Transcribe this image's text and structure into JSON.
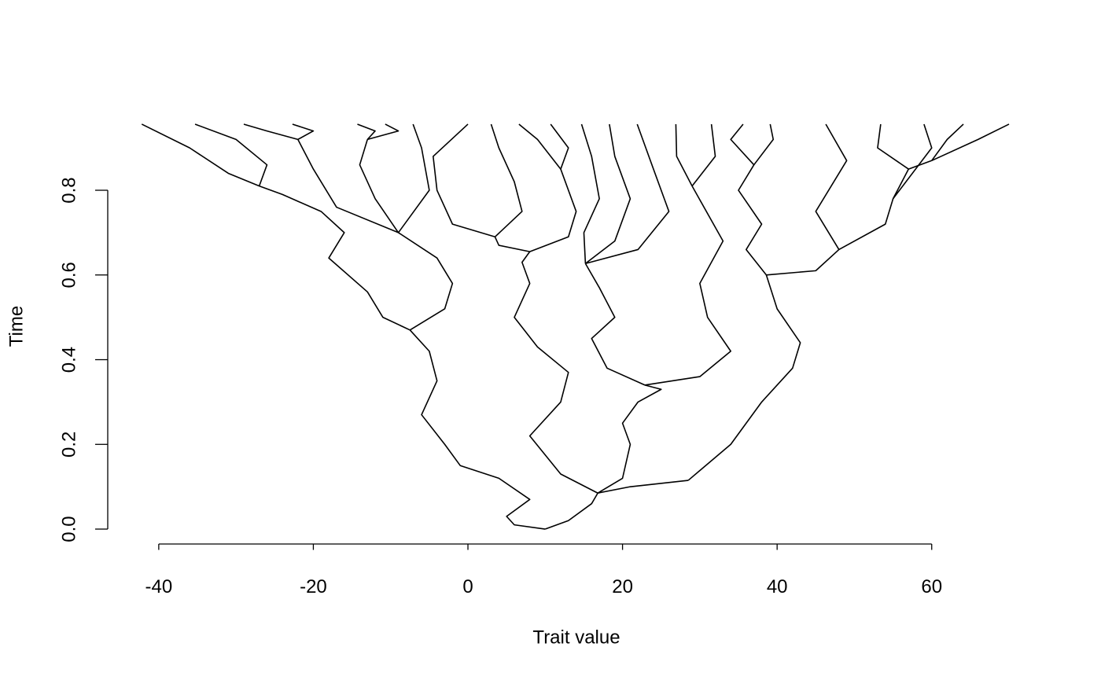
{
  "chart_data": {
    "type": "line",
    "x_label": "Trait value",
    "y_label": "Time",
    "color": "#000000",
    "xlim": [
      -46.6,
      76
    ],
    "ylim": [
      -0.038,
      0.994
    ],
    "xticks": [
      -40,
      -20,
      0,
      20,
      40,
      60
    ],
    "yticks": [
      {
        "value": 0,
        "label": "0.0"
      },
      0.2,
      0.4,
      0.6,
      0.8
    ],
    "series": [
      {
        "x": [
          10,
          6,
          5,
          8,
          4,
          -1,
          -3,
          -6,
          -4,
          -5,
          -7.5
        ],
        "values": [
          0,
          0.01,
          0.03,
          0.07,
          0.12,
          0.15,
          0.2,
          0.27,
          0.35,
          0.42,
          0.47
        ]
      },
      {
        "x": [
          10,
          13,
          16,
          16.8
        ],
        "values": [
          0,
          0.02,
          0.06,
          0.085
        ]
      },
      {
        "x": [
          -7.5,
          -11,
          -13,
          -18,
          -16,
          -19,
          -24,
          -27
        ],
        "values": [
          0.47,
          0.5,
          0.56,
          0.64,
          0.7,
          0.75,
          0.79,
          0.81
        ]
      },
      {
        "x": [
          -27,
          -31,
          -36,
          -42.2
        ],
        "values": [
          0.81,
          0.84,
          0.9,
          0.956
        ]
      },
      {
        "x": [
          -27,
          -26,
          -30,
          -35.3
        ],
        "values": [
          0.81,
          0.86,
          0.92,
          0.956
        ]
      },
      {
        "x": [
          -7.5,
          -3,
          -2,
          -4,
          -9
        ],
        "values": [
          0.47,
          0.52,
          0.58,
          0.64,
          0.7
        ]
      },
      {
        "x": [
          -9,
          -17,
          -20,
          -22
        ],
        "values": [
          0.7,
          0.76,
          0.85,
          0.92
        ]
      },
      {
        "x": [
          -22,
          -26,
          -29
        ],
        "values": [
          0.92,
          0.94,
          0.956
        ]
      },
      {
        "x": [
          -22,
          -20,
          -22.7
        ],
        "values": [
          0.92,
          0.94,
          0.956
        ]
      },
      {
        "x": [
          -9,
          -12,
          -14,
          -13
        ],
        "values": [
          0.7,
          0.78,
          0.86,
          0.92
        ]
      },
      {
        "x": [
          -13,
          -12,
          -14.3
        ],
        "values": [
          0.92,
          0.94,
          0.956
        ]
      },
      {
        "x": [
          -13,
          -9,
          -10.7
        ],
        "values": [
          0.92,
          0.94,
          0.956
        ]
      },
      {
        "x": [
          -9,
          -5,
          -6,
          -7.1
        ],
        "values": [
          0.7,
          0.8,
          0.9,
          0.956
        ]
      },
      {
        "x": [
          16.8,
          12,
          8,
          12,
          13,
          9,
          6,
          8,
          7,
          8
        ],
        "values": [
          0.085,
          0.13,
          0.22,
          0.3,
          0.37,
          0.43,
          0.5,
          0.58,
          0.63,
          0.655
        ]
      },
      {
        "x": [
          8,
          4,
          3.5
        ],
        "values": [
          0.655,
          0.67,
          0.69
        ]
      },
      {
        "x": [
          3.5,
          -2,
          -4,
          -4.5,
          0
        ],
        "values": [
          0.69,
          0.72,
          0.8,
          0.88,
          0.956
        ]
      },
      {
        "x": [
          3.5,
          7,
          6,
          4,
          3
        ],
        "values": [
          0.69,
          0.75,
          0.82,
          0.9,
          0.956
        ]
      },
      {
        "x": [
          8,
          13,
          14,
          12,
          9,
          6.6
        ],
        "values": [
          0.655,
          0.69,
          0.75,
          0.85,
          0.92,
          0.956
        ]
      },
      {
        "x": [
          12,
          13,
          10.7
        ],
        "values": [
          0.85,
          0.9,
          0.956
        ]
      },
      {
        "x": [
          16.8,
          20,
          21,
          20,
          22,
          25,
          22.9
        ],
        "values": [
          0.085,
          0.12,
          0.2,
          0.25,
          0.3,
          0.33,
          0.34
        ]
      },
      {
        "x": [
          22.9,
          18,
          16,
          19,
          17,
          15.2
        ],
        "values": [
          0.34,
          0.38,
          0.45,
          0.5,
          0.57,
          0.627
        ]
      },
      {
        "x": [
          15.2,
          15,
          17,
          16,
          14.7
        ],
        "values": [
          0.627,
          0.7,
          0.78,
          0.88,
          0.956
        ]
      },
      {
        "x": [
          15.2,
          19,
          21,
          19,
          18.3
        ],
        "values": [
          0.627,
          0.68,
          0.78,
          0.88,
          0.956
        ]
      },
      {
        "x": [
          15.2,
          22,
          26,
          24,
          21.9
        ],
        "values": [
          0.627,
          0.66,
          0.75,
          0.85,
          0.956
        ]
      },
      {
        "x": [
          22.9,
          30,
          34,
          31,
          30,
          33,
          29
        ],
        "values": [
          0.34,
          0.36,
          0.42,
          0.5,
          0.58,
          0.68,
          0.81
        ]
      },
      {
        "x": [
          29,
          27,
          26.9
        ],
        "values": [
          0.81,
          0.88,
          0.956
        ]
      },
      {
        "x": [
          29,
          32,
          31.5
        ],
        "values": [
          0.81,
          0.88,
          0.956
        ]
      },
      {
        "x": [
          16.8,
          21,
          28.5
        ],
        "values": [
          0.085,
          0.1,
          0.115
        ]
      },
      {
        "x": [
          28.5,
          34,
          38,
          42,
          43,
          40,
          38.6
        ],
        "values": [
          0.115,
          0.2,
          0.3,
          0.38,
          0.44,
          0.52,
          0.6
        ]
      },
      {
        "x": [
          38.6,
          36,
          38,
          35,
          37,
          34,
          35.6
        ],
        "values": [
          0.6,
          0.66,
          0.72,
          0.8,
          0.86,
          0.92,
          0.956
        ]
      },
      {
        "x": [
          37,
          39.5,
          39.1
        ],
        "values": [
          0.86,
          0.92,
          0.956
        ]
      },
      {
        "x": [
          38.6,
          45,
          48,
          54,
          55,
          57,
          60
        ],
        "values": [
          0.6,
          0.61,
          0.66,
          0.72,
          0.78,
          0.85,
          0.87
        ]
      },
      {
        "x": [
          60,
          66,
          70
        ],
        "values": [
          0.87,
          0.92,
          0.956
        ]
      },
      {
        "x": [
          60,
          62,
          64.1
        ],
        "values": [
          0.87,
          0.92,
          0.956
        ]
      },
      {
        "x": [
          57,
          53,
          53.4
        ],
        "values": [
          0.85,
          0.9,
          0.956
        ]
      },
      {
        "x": [
          48,
          45,
          49,
          46.3
        ],
        "values": [
          0.66,
          0.75,
          0.87,
          0.956
        ]
      },
      {
        "x": [
          55,
          60,
          59
        ],
        "values": [
          0.78,
          0.9,
          0.956
        ]
      }
    ]
  }
}
